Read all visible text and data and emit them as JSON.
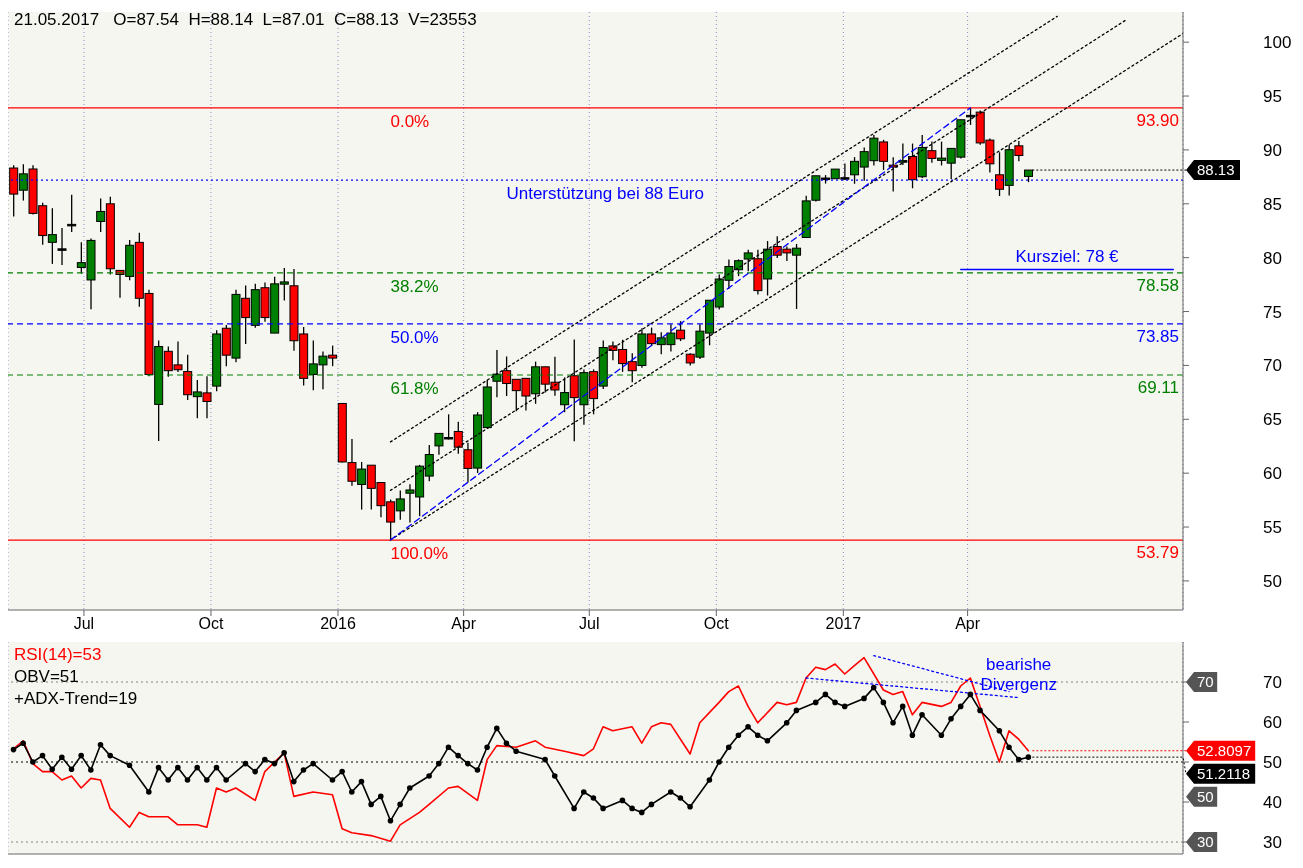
{
  "chart_data": [
    {
      "type": "candlestick",
      "title": "21.05.2017   O=87.54  H=88.14  L=87.01  C=88.13  V=23553",
      "x": [
        "2015-05-11",
        "2015-05-18",
        "2015-05-25",
        "2015-06-01",
        "2015-06-08",
        "2015-06-15",
        "2015-06-22",
        "2015-06-29",
        "2015-07-06",
        "2015-07-13",
        "2015-07-20",
        "2015-07-27",
        "2015-08-03",
        "2015-08-10",
        "2015-08-17",
        "2015-08-24",
        "2015-08-31",
        "2015-09-07",
        "2015-09-14",
        "2015-09-21",
        "2015-09-28",
        "2015-10-05",
        "2015-10-12",
        "2015-10-19",
        "2015-10-26",
        "2015-11-02",
        "2015-11-09",
        "2015-11-16",
        "2015-11-23",
        "2015-11-30",
        "2015-12-07",
        "2015-12-14",
        "2015-12-21",
        "2015-12-28",
        "2016-01-04",
        "2016-01-11",
        "2016-01-18",
        "2016-01-25",
        "2016-02-01",
        "2016-02-08",
        "2016-02-15",
        "2016-02-22",
        "2016-02-29",
        "2016-03-07",
        "2016-03-14",
        "2016-03-21",
        "2016-03-28",
        "2016-04-04",
        "2016-04-11",
        "2016-04-18",
        "2016-04-25",
        "2016-05-02",
        "2016-05-09",
        "2016-05-16",
        "2016-05-23",
        "2016-05-30",
        "2016-06-06",
        "2016-06-13",
        "2016-06-20",
        "2016-06-27",
        "2016-07-04",
        "2016-07-11",
        "2016-07-18",
        "2016-07-25",
        "2016-08-01",
        "2016-08-08",
        "2016-08-15",
        "2016-08-22",
        "2016-08-29",
        "2016-09-05",
        "2016-09-12",
        "2016-09-19",
        "2016-09-26",
        "2016-10-03",
        "2016-10-10",
        "2016-10-17",
        "2016-10-24",
        "2016-10-31",
        "2016-11-07",
        "2016-11-14",
        "2016-11-21",
        "2016-11-28",
        "2016-12-05",
        "2016-12-12",
        "2016-12-19",
        "2016-12-26",
        "2017-01-02",
        "2017-01-09",
        "2017-01-16",
        "2017-01-23",
        "2017-01-30",
        "2017-02-06",
        "2017-02-13",
        "2017-02-20",
        "2017-02-27",
        "2017-03-06",
        "2017-03-13",
        "2017-03-20",
        "2017-03-27",
        "2017-04-03",
        "2017-04-10",
        "2017-04-17",
        "2017-04-24",
        "2017-05-01",
        "2017-05-08",
        "2017-05-15"
      ],
      "ohlc": [
        [
          88.32,
          88.58,
          83.81,
          85.9
        ],
        [
          86.26,
          88.67,
          85.3,
          87.78
        ],
        [
          88.23,
          88.58,
          84.0,
          84.11
        ],
        [
          84.82,
          85.09,
          81.21,
          82.05
        ],
        [
          81.42,
          84.59,
          79.42,
          82.14
        ],
        [
          80.82,
          82.76,
          79.33,
          80.82
        ],
        [
          83.09,
          85.84,
          82.38,
          83.09
        ],
        [
          79.09,
          81.42,
          78.53,
          79.54
        ],
        [
          77.93,
          81.78,
          75.21,
          81.6
        ],
        [
          83.36,
          85.48,
          82.38,
          84.29
        ],
        [
          85.0,
          85.66,
          78.44,
          78.97
        ],
        [
          78.82,
          78.82,
          76.29,
          78.44
        ],
        [
          78.26,
          81.63,
          77.9,
          81.15
        ],
        [
          81.42,
          82.32,
          75.45,
          76.23
        ],
        [
          76.68,
          77.03,
          69.0,
          69.16
        ],
        [
          66.38,
          72.32,
          62.98,
          71.75
        ],
        [
          71.31,
          71.75,
          68.95,
          69.51
        ],
        [
          70.05,
          72.23,
          69.39,
          69.6
        ],
        [
          69.43,
          70.98,
          66.8,
          67.28
        ],
        [
          67.1,
          68.65,
          65.1,
          67.54
        ],
        [
          67.45,
          69.0,
          65.1,
          66.65
        ],
        [
          68.08,
          73.27,
          67.6,
          72.92
        ],
        [
          73.45,
          73.75,
          69.93,
          70.95
        ],
        [
          70.68,
          77.03,
          70.29,
          76.59
        ],
        [
          76.23,
          77.42,
          71.99,
          74.44
        ],
        [
          73.72,
          77.57,
          73.5,
          77.03
        ],
        [
          77.21,
          77.69,
          74.05,
          74.44
        ],
        [
          73.0,
          78.23,
          73.0,
          77.57
        ],
        [
          77.54,
          79.03,
          76.02,
          77.75
        ],
        [
          77.39,
          78.94,
          71.36,
          72.29
        ],
        [
          72.92,
          73.57,
          68.14,
          68.8
        ],
        [
          69.16,
          72.32,
          67.69,
          70.14
        ],
        [
          70.05,
          71.3,
          67.78,
          70.86
        ],
        [
          70.95,
          71.84,
          69.93,
          70.68
        ],
        [
          66.47,
          66.5,
          61.0,
          61.04
        ],
        [
          60.98,
          63.16,
          58.83,
          59.25
        ],
        [
          58.95,
          61.04,
          56.62,
          60.38
        ],
        [
          60.74,
          60.74,
          56.62,
          58.59
        ],
        [
          59.13,
          59.13,
          55.91,
          56.98
        ],
        [
          57.34,
          57.55,
          53.79,
          55.46
        ],
        [
          56.5,
          58.38,
          55.67,
          57.61
        ],
        [
          58.14,
          58.98,
          55.43,
          58.44
        ],
        [
          57.79,
          60.77,
          56.0,
          60.65
        ],
        [
          59.73,
          62.62,
          59.25,
          61.73
        ],
        [
          62.53,
          63.69,
          61.7,
          63.69
        ],
        [
          63.31,
          65.46,
          63.13,
          63.31
        ],
        [
          63.87,
          64.77,
          61.81,
          62.41
        ],
        [
          62.17,
          62.83,
          59.13,
          60.44
        ],
        [
          60.47,
          65.66,
          60.02,
          65.4
        ],
        [
          64.23,
          68.65,
          64.23,
          68.0
        ],
        [
          68.53,
          71.42,
          67.04,
          69.19
        ],
        [
          69.51,
          70.83,
          67.16,
          68.32
        ],
        [
          68.71,
          68.71,
          65.75,
          67.66
        ],
        [
          68.8,
          68.8,
          65.81,
          67.16
        ],
        [
          67.37,
          70.35,
          66.44,
          69.87
        ],
        [
          69.87,
          69.87,
          67.48,
          68.26
        ],
        [
          68.44,
          70.8,
          67.19,
          67.72
        ],
        [
          66.35,
          68.89,
          65.66,
          67.48
        ],
        [
          69.04,
          72.41,
          62.95,
          67.01
        ],
        [
          66.35,
          69.63,
          64.5,
          69.33
        ],
        [
          69.42,
          69.63,
          65.46,
          66.92
        ],
        [
          68.08,
          72.32,
          67.8,
          71.66
        ],
        [
          71.81,
          72.23,
          70.47,
          71.39
        ],
        [
          71.48,
          72.38,
          69.4,
          70.17
        ],
        [
          70.35,
          71.13,
          68.44,
          69.51
        ],
        [
          69.99,
          73.45,
          69.78,
          72.92
        ],
        [
          72.92,
          73.51,
          71.8,
          72.02
        ],
        [
          71.93,
          73.07,
          71.04,
          72.56
        ],
        [
          71.93,
          73.81,
          71.28,
          73.0
        ],
        [
          73.27,
          74.11,
          72.26,
          72.47
        ],
        [
          71.04,
          71.13,
          70.0,
          70.23
        ],
        [
          70.77,
          73.81,
          70.59,
          73.18
        ],
        [
          73.0,
          76.05,
          71.87,
          76.05
        ],
        [
          75.42,
          78.44,
          75.2,
          78.02
        ],
        [
          77.9,
          79.84,
          77.09,
          79.18
        ],
        [
          78.88,
          79.84,
          78.29,
          79.72
        ],
        [
          79.87,
          80.73,
          78.73,
          80.44
        ],
        [
          79.9,
          80.73,
          76.58,
          76.94
        ],
        [
          78.02,
          81.54,
          76.49,
          80.79
        ],
        [
          81.03,
          81.99,
          79.96,
          80.23
        ],
        [
          80.79,
          81.03,
          79.69,
          80.44
        ],
        [
          80.23,
          81.27,
          75.24,
          80.88
        ],
        [
          81.87,
          85.75,
          81.87,
          85.27
        ],
        [
          85.33,
          87.6,
          85.21,
          87.6
        ],
        [
          87.39,
          87.66,
          86.88,
          87.39
        ],
        [
          87.33,
          88.22,
          87.33,
          88.22
        ],
        [
          87.42,
          88.73,
          87.24,
          87.42
        ],
        [
          87.69,
          89.33,
          86.86,
          88.94
        ],
        [
          88.41,
          90.23,
          87.15,
          89.84
        ],
        [
          89.0,
          91.39,
          88.56,
          91.09
        ],
        [
          90.74,
          90.94,
          88.14,
          88.94
        ],
        [
          88.59,
          89.33,
          86.14,
          88.41
        ],
        [
          88.97,
          90.59,
          88.59,
          89.0
        ],
        [
          89.39,
          90.59,
          86.44,
          87.24
        ],
        [
          87.51,
          91.39,
          87.4,
          90.23
        ],
        [
          89.93,
          90.77,
          88.8,
          89.21
        ],
        [
          89.03,
          90.77,
          88.56,
          89.24
        ],
        [
          88.77,
          90.14,
          87.3,
          90.14
        ],
        [
          89.33,
          92.8,
          89.2,
          92.8
        ],
        [
          93.21,
          93.9,
          92.32,
          93.21
        ],
        [
          93.51,
          93.66,
          90.47,
          90.65
        ],
        [
          90.91,
          91.06,
          87.9,
          88.71
        ],
        [
          87.69,
          89.78,
          85.72,
          86.35
        ],
        [
          86.71,
          90.47,
          85.78,
          90.02
        ],
        [
          90.38,
          90.83,
          88.94,
          89.48
        ],
        [
          87.54,
          88.14,
          87.01,
          88.13
        ]
      ],
      "colors": [
        "#ff0000",
        "#008000",
        "#ff0000",
        "#ff0000",
        "#008000",
        "#000000",
        "#000000",
        "#008000",
        "#008000",
        "#008000",
        "#ff0000",
        "#ff0000",
        "#008000",
        "#ff0000",
        "#ff0000",
        "#008000",
        "#ff0000",
        "#ff0000",
        "#ff0000",
        "#008000",
        "#ff0000",
        "#008000",
        "#ff0000",
        "#008000",
        "#ff0000",
        "#008000",
        "#ff0000",
        "#008000",
        "#008000",
        "#ff0000",
        "#ff0000",
        "#008000",
        "#008000",
        "#ff0000",
        "#ff0000",
        "#ff0000",
        "#008000",
        "#ff0000",
        "#ff0000",
        "#ff0000",
        "#008000",
        "#008000",
        "#008000",
        "#008000",
        "#008000",
        "#000000",
        "#ff0000",
        "#ff0000",
        "#008000",
        "#008000",
        "#008000",
        "#ff0000",
        "#ff0000",
        "#ff0000",
        "#008000",
        "#ff0000",
        "#ff0000",
        "#008000",
        "#ff0000",
        "#008000",
        "#ff0000",
        "#008000",
        "#ff0000",
        "#ff0000",
        "#ff0000",
        "#008000",
        "#ff0000",
        "#008000",
        "#008000",
        "#ff0000",
        "#ff0000",
        "#008000",
        "#008000",
        "#008000",
        "#008000",
        "#008000",
        "#008000",
        "#ff0000",
        "#008000",
        "#ff0000",
        "#ff0000",
        "#008000",
        "#008000",
        "#008000",
        "#000000",
        "#008000",
        "#000000",
        "#008000",
        "#008000",
        "#008000",
        "#ff0000",
        "#ff0000",
        "#008000",
        "#ff0000",
        "#008000",
        "#ff0000",
        "#008000",
        "#008000",
        "#008000",
        "#000000",
        "#ff0000",
        "#ff0000",
        "#ff0000",
        "#008000",
        "#ff0000",
        "#008000"
      ],
      "series": [
        {
          "type": "line",
          "color": "#000000",
          "line_style": "dotted",
          "x": [
            "2016-02-08",
            "2017-06-05"
          ],
          "values": [
            62.9,
            102.4
          ]
        },
        {
          "type": "line",
          "color": "#000000",
          "line_style": "dotted",
          "x": [
            "2016-02-08",
            "2017-07-24"
          ],
          "values": [
            58.4,
            102.0
          ]
        },
        {
          "type": "line",
          "color": "#000000",
          "line_style": "dotted",
          "x": [
            "2016-02-08",
            "2017-09-04"
          ],
          "values": [
            53.8,
            100.8
          ]
        },
        {
          "type": "line",
          "color": "#0000ff",
          "line_style": "dashed",
          "x": [
            "2016-02-08",
            "2017-04-03"
          ],
          "values": [
            53.8,
            93.9
          ]
        },
        {
          "type": "line",
          "color": "#0000ff",
          "line_style": "solid",
          "x": [
            "2017-03-27",
            "2017-08-28"
          ],
          "values": [
            78.9,
            78.9
          ]
        }
      ],
      "xlim": [
        "2015-05-07",
        "2017-09-04"
      ],
      "xticks": [
        {
          "value": "2015-07-01",
          "label": "Jul"
        },
        {
          "value": "2015-10-01",
          "label": "Oct"
        },
        {
          "value": "2016-01-01",
          "label": "2016"
        },
        {
          "value": "2016-04-01",
          "label": "Apr"
        },
        {
          "value": "2016-07-01",
          "label": "Jul"
        },
        {
          "value": "2016-10-01",
          "label": "Oct"
        },
        {
          "value": "2017-01-01",
          "label": "2017"
        },
        {
          "value": "2017-04-01",
          "label": "Apr"
        }
      ],
      "ylim": [
        47.3,
        102.8
      ],
      "yticks": [
        50,
        55,
        60,
        65,
        70,
        75,
        80,
        85,
        90,
        95,
        100
      ],
      "grid": "x",
      "ref_lines": [
        {
          "axis": "y",
          "value": 93.9,
          "label": "93.90",
          "color": "#ff0000",
          "line_style": "solid"
        },
        {
          "axis": "y",
          "value": 78.58,
          "label": "78.58",
          "color": "#008000",
          "line_style": "dashed"
        },
        {
          "axis": "y",
          "value": 73.85,
          "label": "73.85",
          "color": "#0000ff",
          "line_style": "dashed"
        },
        {
          "axis": "y",
          "value": 69.11,
          "label": "69.11",
          "color": "#008000",
          "line_style": "dashed"
        },
        {
          "axis": "y",
          "value": 53.79,
          "label": "53.79",
          "color": "#ff0000",
          "line_style": "solid"
        },
        {
          "axis": "y",
          "value": 87.2,
          "color": "#0000ff",
          "line_style": "dotted"
        }
      ],
      "annotations": [
        {
          "text": "0.0%",
          "x": "2016-02-08",
          "y": 93.9
        },
        {
          "text": "38.2%",
          "x": "2016-02-08",
          "y": 78.58
        },
        {
          "text": "50.0%",
          "x": "2016-02-08",
          "y": 73.85
        },
        {
          "text": "61.8%",
          "x": "2016-02-08",
          "y": 69.11
        },
        {
          "text": "100.0%",
          "x": "2016-02-08",
          "y": 53.79
        },
        {
          "text": "Unterstützung bei 88 Euro",
          "x": "2016-05-02",
          "y": 87.2
        },
        {
          "text": "Kursziel: 78 €",
          "x": "2017-06-12",
          "y": 78.9
        },
        {
          "text": "88.13",
          "x": "2017-05-15",
          "y": 88.13
        }
      ]
    },
    {
      "type": "line",
      "legend": "top left",
      "tick_labels": "y",
      "grid": "x",
      "xlim": [
        "2015-05-07",
        "2017-09-04"
      ],
      "xticks": [
        {
          "value": "2015-07-01",
          "label": null
        },
        {
          "value": "2015-10-01",
          "label": null
        },
        {
          "value": "2016-01-01",
          "label": null
        },
        {
          "value": "2016-04-01",
          "label": null
        },
        {
          "value": "2016-07-01",
          "label": null
        },
        {
          "value": "2016-10-01",
          "label": null
        },
        {
          "value": "2017-01-01",
          "label": null
        },
        {
          "value": "2017-04-01",
          "label": null
        }
      ],
      "ylim": [
        27,
        80
      ],
      "yticks": [
        30,
        40,
        50,
        60,
        70
      ],
      "series": [
        {
          "name": "RSI(14)=53",
          "color": "#ff0000",
          "marker": "none",
          "x": [
            "2015-05-11",
            "2015-05-18",
            "2015-05-25",
            "2015-06-01",
            "2015-06-08",
            "2015-06-15",
            "2015-06-22",
            "2015-06-29",
            "2015-07-06",
            "2015-07-13",
            "2015-07-20",
            "2015-08-03",
            "2015-08-10",
            "2015-08-17",
            "2015-08-31",
            "2015-09-07",
            "2015-09-21",
            "2015-09-28",
            "2015-10-05",
            "2015-10-12",
            "2015-10-19",
            "2015-11-02",
            "2015-11-09",
            "2015-11-23",
            "2015-11-30",
            "2015-12-14",
            "2015-12-28",
            "2016-01-04",
            "2016-01-11",
            "2016-01-25",
            "2016-02-08",
            "2016-02-15",
            "2016-02-29",
            "2016-03-07",
            "2016-03-21",
            "2016-03-28",
            "2016-04-11",
            "2016-04-18",
            "2016-04-25",
            "2016-05-09",
            "2016-05-23",
            "2016-05-30",
            "2016-06-13",
            "2016-06-27",
            "2016-07-04",
            "2016-07-11",
            "2016-07-18",
            "2016-08-01",
            "2016-08-08",
            "2016-08-15",
            "2016-08-22",
            "2016-08-29",
            "2016-09-12",
            "2016-09-19",
            "2016-10-03",
            "2016-10-10",
            "2016-10-17",
            "2016-10-24",
            "2016-10-31",
            "2016-11-14",
            "2016-11-21",
            "2016-11-28",
            "2016-12-05",
            "2016-12-12",
            "2016-12-19",
            "2016-12-26",
            "2017-01-02",
            "2017-01-09",
            "2017-01-16",
            "2017-01-30",
            "2017-02-06",
            "2017-02-13",
            "2017-02-20",
            "2017-02-27",
            "2017-03-13",
            "2017-03-20",
            "2017-03-27",
            "2017-04-03",
            "2017-04-10",
            "2017-04-17",
            "2017-04-24",
            "2017-05-01",
            "2017-05-08",
            "2017-05-15"
          ],
          "values": [
            53.3,
            55.3,
            49.6,
            47.6,
            47.6,
            45.5,
            46.5,
            43.5,
            45.9,
            45.5,
            38.4,
            33.7,
            37.4,
            36.3,
            36.3,
            34.3,
            34.3,
            33.7,
            43.5,
            42.5,
            43.5,
            40.4,
            47.6,
            52.3,
            41.4,
            42.5,
            41.8,
            33.3,
            32.3,
            31.6,
            30.2,
            34.3,
            37.4,
            39.4,
            43.5,
            43.9,
            40.4,
            50.6,
            54.1,
            53.7,
            55.3,
            53.7,
            52.7,
            51.6,
            53.3,
            58.8,
            57.8,
            58.8,
            54.7,
            58.8,
            59.8,
            59.4,
            52.0,
            59.8,
            64.9,
            67.6,
            69.0,
            63.9,
            59.8,
            64.9,
            64.3,
            64.9,
            71.0,
            73.7,
            73.1,
            74.5,
            72.0,
            74.1,
            76.1,
            68.0,
            66.9,
            67.6,
            61.8,
            64.9,
            63.9,
            64.9,
            69.0,
            71.0,
            63.9,
            56.7,
            50.0,
            57.8,
            55.7,
            52.8097
          ]
        },
        {
          "name": "OBV=51",
          "color": "#000000",
          "marker": "circle",
          "x": [
            "2015-05-11",
            "2015-05-18",
            "2015-05-25",
            "2015-06-01",
            "2015-06-08",
            "2015-06-15",
            "2015-06-22",
            "2015-06-29",
            "2015-07-06",
            "2015-07-13",
            "2015-07-20",
            "2015-08-03",
            "2015-08-17",
            "2015-08-24",
            "2015-08-31",
            "2015-09-07",
            "2015-09-14",
            "2015-09-21",
            "2015-09-28",
            "2015-10-05",
            "2015-10-12",
            "2015-10-26",
            "2015-11-02",
            "2015-11-09",
            "2015-11-16",
            "2015-11-23",
            "2015-11-30",
            "2015-12-07",
            "2015-12-14",
            "2015-12-28",
            "2016-01-04",
            "2016-01-11",
            "2016-01-18",
            "2016-01-25",
            "2016-02-01",
            "2016-02-08",
            "2016-02-15",
            "2016-02-22",
            "2016-03-07",
            "2016-03-14",
            "2016-03-21",
            "2016-03-28",
            "2016-04-04",
            "2016-04-11",
            "2016-04-18",
            "2016-04-25",
            "2016-05-02",
            "2016-05-09",
            "2016-05-30",
            "2016-06-06",
            "2016-06-20",
            "2016-06-27",
            "2016-07-04",
            "2016-07-11",
            "2016-07-25",
            "2016-08-01",
            "2016-08-08",
            "2016-08-15",
            "2016-08-29",
            "2016-09-05",
            "2016-09-12",
            "2016-09-26",
            "2016-10-03",
            "2016-10-10",
            "2016-10-17",
            "2016-10-24",
            "2016-10-31",
            "2016-11-07",
            "2016-11-21",
            "2016-11-28",
            "2016-12-12",
            "2016-12-19",
            "2016-12-26",
            "2017-01-02",
            "2017-01-16",
            "2017-01-23",
            "2017-01-30",
            "2017-02-06",
            "2017-02-13",
            "2017-02-20",
            "2017-02-27",
            "2017-03-13",
            "2017-03-20",
            "2017-03-27",
            "2017-04-03",
            "2017-04-10",
            "2017-04-24",
            "2017-05-01",
            "2017-05-08",
            "2017-05-15"
          ],
          "values": [
            53.1,
            54.7,
            50.0,
            51.6,
            48.2,
            51.2,
            48.2,
            51.6,
            48.0,
            54.3,
            51.6,
            49.2,
            42.5,
            48.6,
            45.5,
            48.6,
            45.5,
            48.6,
            45.5,
            48.6,
            45.5,
            49.6,
            47.6,
            50.6,
            49.6,
            52.3,
            45.1,
            48.0,
            49.6,
            45.5,
            47.6,
            42.5,
            45.1,
            39.4,
            41.4,
            35.3,
            39.4,
            43.5,
            46.5,
            49.6,
            53.7,
            51.6,
            49.6,
            48.0,
            53.7,
            58.4,
            54.7,
            52.7,
            50.6,
            46.5,
            38.4,
            42.5,
            41.0,
            38.4,
            40.4,
            38.4,
            37.4,
            39.4,
            42.5,
            41.0,
            38.8,
            45.5,
            50.0,
            53.7,
            56.7,
            58.8,
            56.7,
            55.3,
            59.8,
            62.9,
            64.9,
            66.9,
            64.9,
            63.9,
            65.9,
            68.6,
            64.9,
            59.8,
            63.9,
            56.7,
            61.8,
            56.7,
            60.8,
            63.9,
            66.9,
            62.9,
            57.8,
            53.7,
            50.6,
            51.2118
          ]
        },
        {
          "color": "#0000ff",
          "line_style": "dotted",
          "marker": "none",
          "x": [
            "2017-01-23",
            "2017-05-01"
          ],
          "values": [
            76.6,
            67.6
          ]
        },
        {
          "color": "#0000ff",
          "line_style": "dotted",
          "marker": "none",
          "x": [
            "2016-12-05",
            "2017-05-08"
          ],
          "values": [
            71.0,
            66.1
          ]
        }
      ],
      "ref_lines": [
        {
          "axis": "y",
          "value": 70,
          "color": "#808080",
          "line_style": "dotted"
        },
        {
          "axis": "y",
          "value": 50,
          "color": "#000000",
          "line_style": "dotted"
        },
        {
          "axis": "y",
          "value": 30,
          "color": "#808080",
          "line_style": "dotted"
        }
      ],
      "annotations": [
        "+ADX-Trend=19",
        {
          "text": "bearishe Divergenz",
          "x": "2017-05-08",
          "y": 66.1
        },
        {
          "text": "70",
          "x": "2017-09-04",
          "y": 70
        },
        {
          "text": "52.8097",
          "x": "2017-05-15",
          "y": 52.8097
        },
        {
          "text": "51.2118",
          "x": "2017-05-15",
          "y": 51.2118
        },
        {
          "text": "50",
          "x": "2017-09-04",
          "y": 50
        },
        {
          "text": "30",
          "x": "2017-09-04",
          "y": 30
        }
      ]
    }
  ]
}
